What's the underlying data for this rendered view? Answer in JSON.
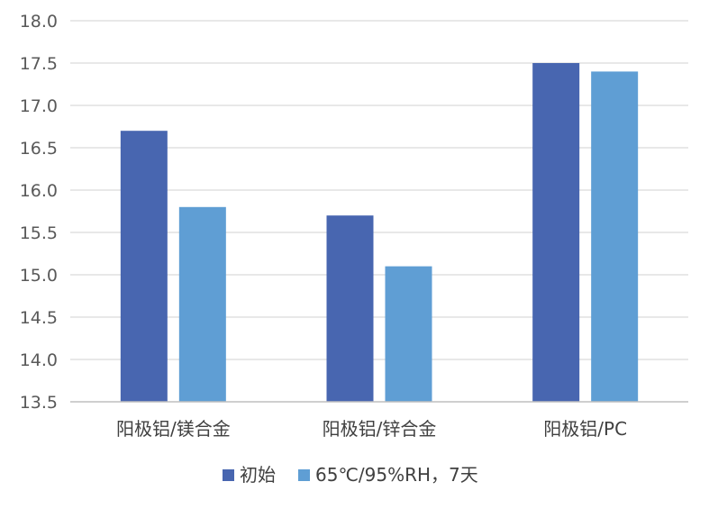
{
  "chart_data": {
    "type": "bar",
    "categories": [
      "阳极铝/镁合金",
      "阳极铝/锌合金",
      "阳极铝/PC"
    ],
    "series": [
      {
        "name": "初始",
        "values": [
          16.7,
          15.7,
          17.5
        ],
        "color": "#4866b0"
      },
      {
        "name": "65℃/95%RH，7天",
        "values": [
          15.8,
          15.1,
          17.4
        ],
        "color": "#5f9ed4"
      }
    ],
    "yticks": [
      "13.5",
      "14.0",
      "14.5",
      "15.0",
      "15.5",
      "16.0",
      "16.5",
      "17.0",
      "17.5",
      "18.0"
    ],
    "ylim": [
      13.5,
      18.0
    ],
    "grid": true,
    "legend_position": "bottom"
  }
}
